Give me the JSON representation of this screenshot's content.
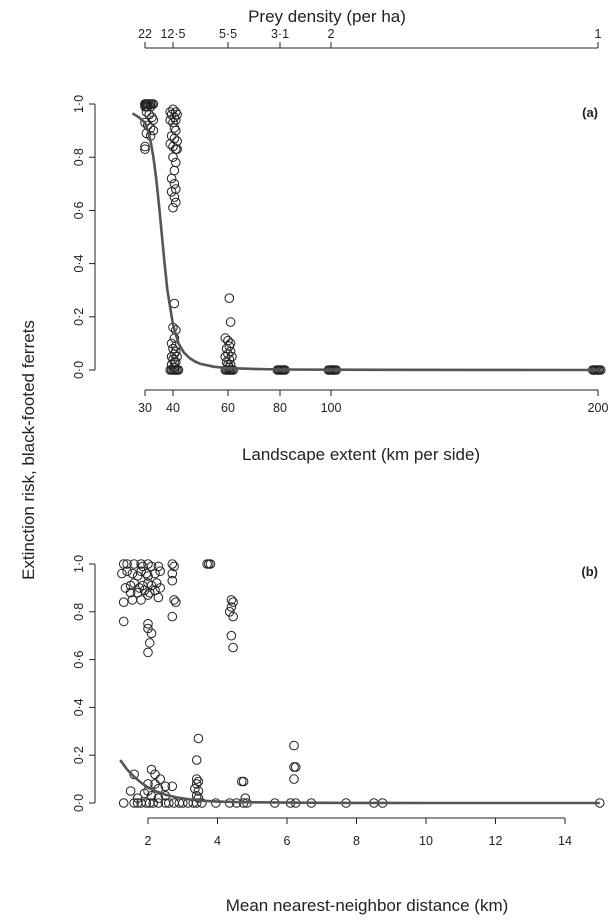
{
  "figure": {
    "shared_ylabel": "Extinction risk, black-footed ferrets"
  },
  "chart_data": [
    {
      "type": "scatter",
      "panel_label": "(a)",
      "xlabel": "Landscape extent (km per side)",
      "ylabel": "Extinction risk, black-footed ferrets",
      "xlim": [
        26,
        200
      ],
      "ylim": [
        0,
        1
      ],
      "x_ticks": [
        30,
        40,
        60,
        80,
        100,
        200
      ],
      "y_ticks": [
        0,
        0.2,
        0.4,
        0.6,
        0.8,
        1.0
      ],
      "y_tick_labels": [
        "0·0",
        "0·2",
        "0·4",
        "0·6",
        "0·8",
        "1·0"
      ],
      "top_axis": {
        "label": "Prey density (per ha)",
        "tick_labels": [
          "22",
          "12·5",
          "5·5",
          "3·1",
          "2",
          "1"
        ],
        "tick_positions_x": [
          30,
          40,
          60,
          80,
          100,
          200
        ]
      },
      "grid": false,
      "series": [
        {
          "kind": "points",
          "points": [
            [
              30,
              1.0
            ],
            [
              30,
              1.0
            ],
            [
              30,
              1.0
            ],
            [
              30,
              1.0
            ],
            [
              30.3,
              1.0
            ],
            [
              30.6,
              1.0
            ],
            [
              31,
              1.0
            ],
            [
              31.5,
              1.0
            ],
            [
              32,
              1.0
            ],
            [
              32.5,
              1.0
            ],
            [
              33,
              1.0
            ],
            [
              30,
              0.99
            ],
            [
              30.5,
              0.99
            ],
            [
              31,
              0.99
            ],
            [
              32,
              0.99
            ],
            [
              30.5,
              0.97
            ],
            [
              31.5,
              0.96
            ],
            [
              32.5,
              0.95
            ],
            [
              33,
              0.94
            ],
            [
              30,
              0.93
            ],
            [
              31,
              0.92
            ],
            [
              32,
              0.91
            ],
            [
              33,
              0.9
            ],
            [
              30.5,
              0.89
            ],
            [
              32,
              0.88
            ],
            [
              30,
              0.84
            ],
            [
              30,
              0.83
            ],
            [
              39,
              0.97
            ],
            [
              40,
              0.98
            ],
            [
              41,
              0.97
            ],
            [
              39.5,
              0.96
            ],
            [
              40.5,
              0.95
            ],
            [
              41.5,
              0.96
            ],
            [
              39,
              0.94
            ],
            [
              40,
              0.93
            ],
            [
              41,
              0.94
            ],
            [
              40.5,
              0.91
            ],
            [
              41,
              0.9
            ],
            [
              39.5,
              0.88
            ],
            [
              40.5,
              0.87
            ],
            [
              41.5,
              0.86
            ],
            [
              39,
              0.85
            ],
            [
              40,
              0.84
            ],
            [
              41,
              0.83
            ],
            [
              41.5,
              0.83
            ],
            [
              40,
              0.8
            ],
            [
              41,
              0.78
            ],
            [
              40.5,
              0.75
            ],
            [
              39.5,
              0.72
            ],
            [
              40.5,
              0.7
            ],
            [
              41,
              0.68
            ],
            [
              39.5,
              0.67
            ],
            [
              40.5,
              0.65
            ],
            [
              41,
              0.63
            ],
            [
              40,
              0.61
            ],
            [
              40.5,
              0.25
            ],
            [
              40,
              0.16
            ],
            [
              41,
              0.15
            ],
            [
              40.5,
              0.12
            ],
            [
              39.5,
              0.1
            ],
            [
              41,
              0.09
            ],
            [
              40,
              0.08
            ],
            [
              41,
              0.07
            ],
            [
              40.5,
              0.06
            ],
            [
              39.5,
              0.05
            ],
            [
              41.5,
              0.05
            ],
            [
              40,
              0.04
            ],
            [
              41,
              0.03
            ],
            [
              40.5,
              0.03
            ],
            [
              39.5,
              0.02
            ],
            [
              40.5,
              0.01
            ],
            [
              39,
              0
            ],
            [
              39.5,
              0
            ],
            [
              40,
              0
            ],
            [
              40.5,
              0
            ],
            [
              41,
              0
            ],
            [
              41.5,
              0
            ],
            [
              42,
              0
            ],
            [
              60.5,
              0.27
            ],
            [
              61,
              0.18
            ],
            [
              59,
              0.12
            ],
            [
              60,
              0.11
            ],
            [
              61,
              0.1
            ],
            [
              60.5,
              0.09
            ],
            [
              59.5,
              0.08
            ],
            [
              61,
              0.07
            ],
            [
              60,
              0.06
            ],
            [
              59,
              0.05
            ],
            [
              61.5,
              0.05
            ],
            [
              60.5,
              0.04
            ],
            [
              59.5,
              0.03
            ],
            [
              60,
              0.02
            ],
            [
              61,
              0.02
            ],
            [
              60.5,
              0.01
            ],
            [
              59,
              0
            ],
            [
              59.5,
              0
            ],
            [
              60,
              0
            ],
            [
              60.5,
              0
            ],
            [
              61,
              0
            ],
            [
              61.5,
              0
            ],
            [
              62,
              0
            ],
            [
              79,
              0
            ],
            [
              79.5,
              0
            ],
            [
              80,
              0
            ],
            [
              80.5,
              0
            ],
            [
              81,
              0
            ],
            [
              81.5,
              0
            ],
            [
              82,
              0
            ],
            [
              99,
              0
            ],
            [
              99.5,
              0
            ],
            [
              100,
              0
            ],
            [
              100.5,
              0
            ],
            [
              101,
              0
            ],
            [
              101.5,
              0
            ],
            [
              102,
              0
            ],
            [
              198,
              0
            ],
            [
              198.5,
              0
            ],
            [
              199,
              0
            ],
            [
              199.5,
              0
            ],
            [
              200,
              0
            ],
            [
              200.5,
              0
            ],
            [
              201,
              0
            ]
          ]
        },
        {
          "kind": "fitted-line",
          "x": [
            28,
            29,
            30,
            31,
            32,
            33,
            34,
            35,
            36,
            37,
            38,
            40,
            42,
            44,
            46,
            48,
            50,
            55,
            60,
            70,
            80,
            100,
            150,
            200
          ],
          "y": [
            0.965,
            0.95,
            0.93,
            0.9,
            0.86,
            0.8,
            0.72,
            0.62,
            0.51,
            0.4,
            0.3,
            0.17,
            0.1,
            0.065,
            0.045,
            0.032,
            0.023,
            0.012,
            0.007,
            0.004,
            0.002,
            0.001,
            0.0005,
            0.0
          ]
        }
      ]
    },
    {
      "type": "scatter",
      "panel_label": "(b)",
      "xlabel": "Mean nearest-neighbor distance (km)",
      "ylabel": "Extinction risk, black-footed ferrets",
      "xlim": [
        0.9,
        15.2
      ],
      "ylim": [
        0,
        1
      ],
      "x_ticks": [
        2,
        4,
        6,
        8,
        10,
        12,
        14
      ],
      "y_ticks": [
        0,
        0.2,
        0.4,
        0.6,
        0.8,
        1.0
      ],
      "y_tick_labels": [
        "0·0",
        "0·2",
        "0·4",
        "0·6",
        "0·8",
        "1·0"
      ],
      "grid": false,
      "series": [
        {
          "kind": "points",
          "points": [
            [
              1.3,
              1.0
            ],
            [
              1.4,
              1.0
            ],
            [
              1.6,
              1.0
            ],
            [
              1.8,
              1.0
            ],
            [
              1.85,
              0.99
            ],
            [
              2.0,
              1.0
            ],
            [
              2.1,
              0.99
            ],
            [
              2.3,
              0.99
            ],
            [
              2.7,
              1.0
            ],
            [
              2.75,
              0.99
            ],
            [
              3.7,
              1.0
            ],
            [
              3.75,
              1.0
            ],
            [
              3.8,
              1.0
            ],
            [
              1.25,
              0.96
            ],
            [
              1.4,
              0.97
            ],
            [
              1.55,
              0.96
            ],
            [
              1.7,
              0.95
            ],
            [
              1.8,
              0.97
            ],
            [
              1.95,
              0.96
            ],
            [
              2.0,
              0.95
            ],
            [
              2.2,
              0.96
            ],
            [
              2.35,
              0.97
            ],
            [
              2.7,
              0.96
            ],
            [
              1.35,
              0.9
            ],
            [
              1.5,
              0.91
            ],
            [
              1.6,
              0.92
            ],
            [
              1.75,
              0.9
            ],
            [
              1.85,
              0.91
            ],
            [
              2.0,
              0.92
            ],
            [
              2.1,
              0.91
            ],
            [
              2.25,
              0.92
            ],
            [
              2.35,
              0.9
            ],
            [
              2.7,
              0.93
            ],
            [
              1.5,
              0.88
            ],
            [
              1.7,
              0.88
            ],
            [
              1.9,
              0.89
            ],
            [
              2.05,
              0.88
            ],
            [
              2.2,
              0.89
            ],
            [
              2.0,
              0.87
            ],
            [
              1.3,
              0.84
            ],
            [
              1.55,
              0.85
            ],
            [
              1.8,
              0.85
            ],
            [
              2.3,
              0.86
            ],
            [
              2.75,
              0.85
            ],
            [
              2.8,
              0.84
            ],
            [
              4.4,
              0.85
            ],
            [
              4.45,
              0.84
            ],
            [
              4.4,
              0.82
            ],
            [
              4.35,
              0.8
            ],
            [
              4.45,
              0.78
            ],
            [
              4.4,
              0.7
            ],
            [
              4.45,
              0.65
            ],
            [
              1.3,
              0.76
            ],
            [
              2.0,
              0.75
            ],
            [
              2.0,
              0.73
            ],
            [
              2.1,
              0.71
            ],
            [
              2.05,
              0.67
            ],
            [
              2.0,
              0.63
            ],
            [
              2.7,
              0.78
            ],
            [
              3.45,
              0.27
            ],
            [
              3.4,
              0.18
            ],
            [
              6.2,
              0.24
            ],
            [
              6.2,
              0.15
            ],
            [
              6.25,
              0.15
            ],
            [
              6.2,
              0.1
            ],
            [
              2.1,
              0.14
            ],
            [
              1.6,
              0.12
            ],
            [
              2.2,
              0.12
            ],
            [
              2.35,
              0.1
            ],
            [
              2.2,
              0.08
            ],
            [
              2.0,
              0.08
            ],
            [
              2.5,
              0.07
            ],
            [
              2.7,
              0.07
            ],
            [
              2.3,
              0.06
            ],
            [
              2.0,
              0.05
            ],
            [
              3.4,
              0.1
            ],
            [
              3.45,
              0.09
            ],
            [
              3.4,
              0.08
            ],
            [
              3.35,
              0.06
            ],
            [
              3.45,
              0.05
            ],
            [
              4.7,
              0.09
            ],
            [
              4.75,
              0.09
            ],
            [
              1.5,
              0.05
            ],
            [
              1.9,
              0.04
            ],
            [
              2.1,
              0.03
            ],
            [
              2.5,
              0.03
            ],
            [
              1.7,
              0.02
            ],
            [
              2.3,
              0.02
            ],
            [
              3.4,
              0.03
            ],
            [
              3.45,
              0.02
            ],
            [
              4.8,
              0.02
            ],
            [
              1.3,
              0
            ],
            [
              1.6,
              0
            ],
            [
              1.7,
              0
            ],
            [
              1.8,
              0
            ],
            [
              1.95,
              0
            ],
            [
              2.05,
              0
            ],
            [
              2.15,
              0
            ],
            [
              2.3,
              0
            ],
            [
              2.5,
              0
            ],
            [
              2.6,
              0
            ],
            [
              2.75,
              0
            ],
            [
              2.9,
              0
            ],
            [
              3.0,
              0
            ],
            [
              3.15,
              0
            ],
            [
              3.3,
              0
            ],
            [
              3.4,
              0
            ],
            [
              3.55,
              0
            ],
            [
              3.95,
              0
            ],
            [
              4.35,
              0
            ],
            [
              4.55,
              0
            ],
            [
              4.75,
              0
            ],
            [
              4.85,
              0
            ],
            [
              5.65,
              0
            ],
            [
              6.1,
              0
            ],
            [
              6.25,
              0
            ],
            [
              6.7,
              0
            ],
            [
              7.7,
              0
            ],
            [
              8.5,
              0
            ],
            [
              8.75,
              0
            ],
            [
              15.0,
              0
            ]
          ]
        },
        {
          "kind": "fitted-line",
          "x": [
            1.2,
            1.4,
            1.6,
            1.8,
            2.0,
            2.2,
            2.5,
            2.8,
            3.2,
            3.6,
            4.0,
            4.5,
            5,
            6,
            7,
            8,
            10,
            12,
            15
          ],
          "y": [
            0.18,
            0.14,
            0.11,
            0.085,
            0.065,
            0.05,
            0.035,
            0.024,
            0.015,
            0.009,
            0.006,
            0.004,
            0.003,
            0.0015,
            0.001,
            0.0005,
            0.0002,
            0.0001,
            0.0
          ]
        }
      ]
    }
  ]
}
